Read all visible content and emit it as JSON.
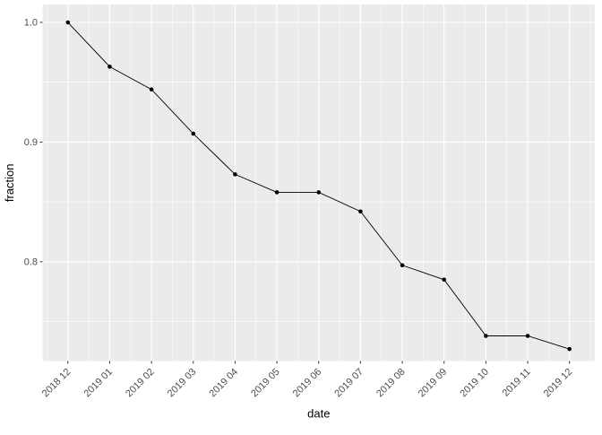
{
  "chart": {
    "x_axis_title": "date",
    "y_axis_title": "fraction"
  },
  "chart_data": {
    "type": "line",
    "title": "",
    "xlabel": "date",
    "ylabel": "fraction",
    "categories": [
      "2018 12",
      "2019 01",
      "2019 02",
      "2019 03",
      "2019 04",
      "2019 05",
      "2019 06",
      "2019 07",
      "2019 08",
      "2019 09",
      "2019 10",
      "2019 11",
      "2019 12"
    ],
    "series": [
      {
        "name": "fraction",
        "values": [
          1.0,
          0.963,
          0.944,
          0.907,
          0.873,
          0.858,
          0.858,
          0.842,
          0.797,
          0.785,
          0.738,
          0.738,
          0.727
        ]
      }
    ],
    "y_major_ticks": [
      0.8,
      0.9,
      1.0
    ],
    "y_major_tick_labels": [
      "0.8",
      "0.9",
      "1.0"
    ],
    "y_minor_ticks": [
      0.75,
      0.85,
      0.95
    ],
    "ylim": [
      0.717,
      1.015
    ],
    "grid": true,
    "legend": false,
    "x_tick_angle_deg": 45,
    "colors": {
      "panel_background": "#ebebeb",
      "gridline": "#ffffff",
      "line": "#000000",
      "point": "#000000",
      "tick_mark": "#333333",
      "tick_label": "#4d4d4d",
      "axis_title": "#000000",
      "figure_background": "#ffffff"
    }
  }
}
